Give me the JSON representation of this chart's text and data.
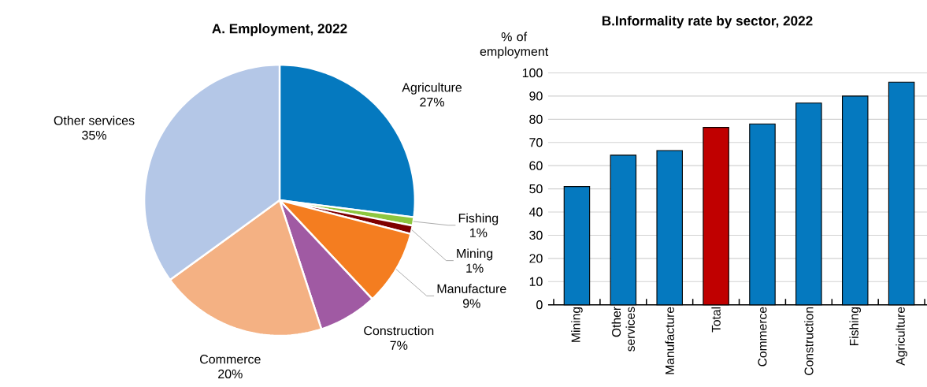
{
  "chart_data": [
    {
      "type": "pie",
      "title": "A. Employment, 2022",
      "categories": [
        "Agriculture",
        "Fishing",
        "Mining",
        "Manufacture",
        "Construction",
        "Commerce",
        "Other services"
      ],
      "values": [
        27,
        1,
        1,
        9,
        7,
        20,
        35
      ],
      "colors": [
        "#0579bf",
        "#8dc63f",
        "#7f0000",
        "#f47d20",
        "#a05aa3",
        "#f4b183",
        "#b4c7e7"
      ],
      "value_labels": [
        "27%",
        "1%",
        "1%",
        "9%",
        "7%",
        "20%",
        "35%"
      ]
    },
    {
      "type": "bar",
      "title": "B.Informality rate by sector, 2022",
      "ylabel": "% of employment",
      "categories": [
        "Mining",
        "Other services",
        "Manufacture",
        "Total",
        "Commerce",
        "Construction",
        "Fishing",
        "Agriculture"
      ],
      "values": [
        51,
        64.5,
        66.5,
        76.5,
        78,
        87,
        90,
        96
      ],
      "colors": [
        "#0579bf",
        "#0579bf",
        "#0579bf",
        "#c00000",
        "#0579bf",
        "#0579bf",
        "#0579bf",
        "#0579bf"
      ],
      "ylim": [
        0,
        100
      ],
      "yticks": [
        0,
        10,
        20,
        30,
        40,
        50,
        60,
        70,
        80,
        90,
        100
      ],
      "grid": "y"
    }
  ]
}
